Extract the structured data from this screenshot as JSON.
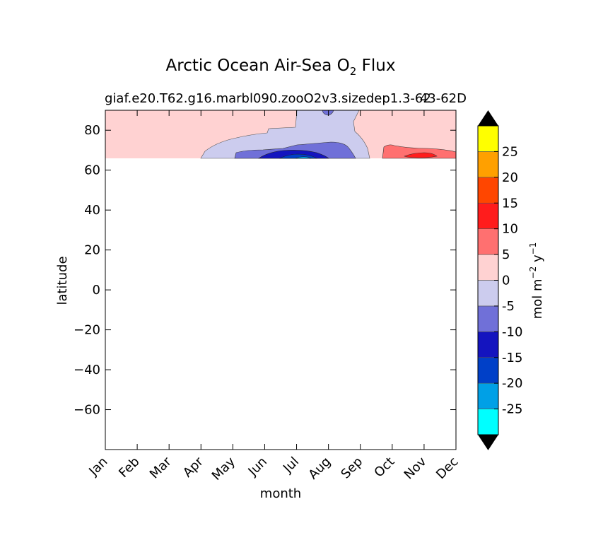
{
  "chart_data": {
    "type": "heatmap",
    "title": "Arctic Ocean Air-Sea O",
    "title_sub": "2",
    "title_suffix": " Flux",
    "subtitle_left": "giaf.e20.T62.g16.marbl090.zooO2v3.sizedep1.3-62",
    "subtitle_right": "43-62D",
    "xlabel": "month",
    "ylabel": "latitude",
    "x_categories": [
      "Jan",
      "Feb",
      "Mar",
      "Apr",
      "May",
      "Jun",
      "Jul",
      "Aug",
      "Sep",
      "Oct",
      "Nov",
      "Dec"
    ],
    "ylim": [
      -80,
      90
    ],
    "y_ticks": [
      80,
      60,
      40,
      20,
      0,
      -20,
      -40,
      -60
    ],
    "y_tick_labels": [
      "80",
      "60",
      "40",
      "20",
      "0",
      "−20",
      "−40",
      "−60"
    ],
    "data_lat_range": [
      66,
      90
    ],
    "colorbar": {
      "label": "mol m",
      "label_sup1": "−2",
      "label_mid": " y",
      "label_sup2": "−1",
      "levels": [
        -30,
        -25,
        -20,
        -15,
        -10,
        -5,
        0,
        5,
        10,
        15,
        20,
        25,
        30
      ],
      "tick_values": [
        -25,
        -20,
        -15,
        -10,
        -5,
        0,
        5,
        10,
        15,
        20,
        25
      ],
      "tick_labels": [
        "-25",
        "-20",
        "-15",
        "-10",
        "-5",
        "0",
        "5",
        "10",
        "15",
        "20",
        "25"
      ],
      "colors": [
        "#00ffff",
        "#00a0e6",
        "#0040c8",
        "#1414bf",
        "#7070d8",
        "#ccccee",
        "#ffd2d2",
        "#ff7070",
        "#ff1c1c",
        "#ff4600",
        "#ffa000",
        "#ffff00"
      ],
      "extend": "both",
      "extend_color": "#000000"
    },
    "grid": false
  }
}
